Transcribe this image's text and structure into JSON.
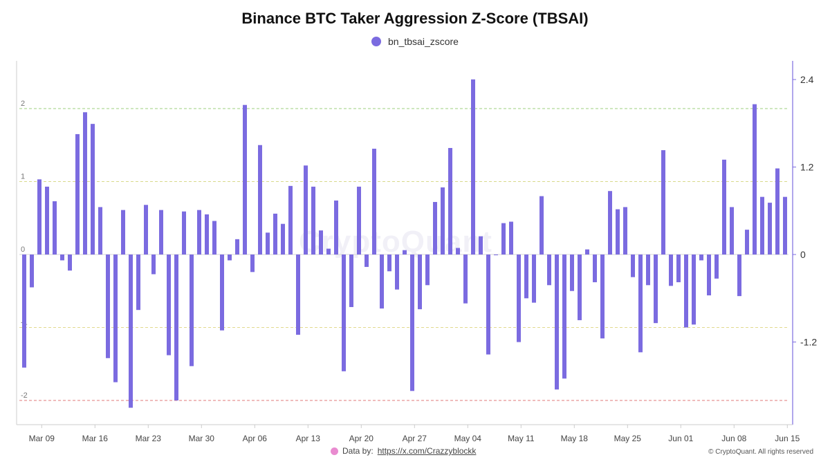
{
  "chart_data": {
    "type": "bar",
    "title": "Binance BTC Taker Aggression Z-Score (TBSAI)",
    "legend": {
      "position": "top-center",
      "entries": [
        "bn_tbsai_zscore"
      ]
    },
    "series": [
      {
        "name": "bn_tbsai_zscore",
        "color": "#7b6be0",
        "values": [
          -1.55,
          -0.45,
          1.03,
          0.93,
          0.73,
          -0.08,
          -0.22,
          1.65,
          1.95,
          1.79,
          0.65,
          -1.42,
          -1.75,
          0.61,
          -2.1,
          -0.76,
          0.68,
          -0.27,
          0.61,
          -1.38,
          -2.0,
          0.59,
          -1.53,
          0.61,
          0.55,
          0.46,
          -1.04,
          -0.08,
          0.21,
          2.05,
          -0.24,
          1.5,
          0.3,
          0.56,
          0.42,
          0.94,
          -1.1,
          1.22,
          0.93,
          0.33,
          0.08,
          0.74,
          -1.6,
          -0.72,
          0.93,
          -0.17,
          1.45,
          -0.74,
          -0.23,
          -0.48,
          0.06,
          -1.87,
          -0.75,
          -0.42,
          0.72,
          0.92,
          1.46,
          0.09,
          -0.67,
          2.4,
          0.25,
          -1.37,
          -0.01,
          0.43,
          0.45,
          -1.2,
          -0.6,
          -0.66,
          0.8,
          -0.42,
          -1.85,
          -1.7,
          -0.5,
          -0.9,
          0.07,
          -0.38,
          -1.15,
          0.87,
          0.62,
          0.65,
          -0.31,
          -1.34,
          -0.42,
          -0.94,
          1.43,
          -0.43,
          -0.38,
          -1.0,
          -0.96,
          -0.08,
          -0.56,
          -0.33,
          1.3,
          0.65,
          -0.57,
          0.34,
          2.06,
          0.79,
          0.71,
          1.18,
          0.79
        ]
      }
    ],
    "x_tick_labels": [
      "Mar 09",
      "Mar 16",
      "Mar 23",
      "Mar 30",
      "Apr 06",
      "Apr 13",
      "Apr 20",
      "Apr 27",
      "May 04",
      "May 11",
      "May 18",
      "May 25",
      "Jun 01",
      "Jun 08",
      "Jun 15"
    ],
    "left_axis": {
      "ticks": [
        "2",
        "1",
        "0",
        "-1",
        "-2"
      ],
      "values": [
        2,
        1,
        0,
        -1,
        -2
      ]
    },
    "right_axis": {
      "ticks": [
        "2.4",
        "1.2",
        "0",
        "-1.2"
      ],
      "values": [
        2.4,
        1.2,
        0,
        -1.2
      ]
    },
    "ylim": [
      -2.35,
      2.6
    ],
    "reference_lines": [
      {
        "value": 2,
        "color": "#9ccf7c"
      },
      {
        "value": 1,
        "color": "#d7d98a"
      },
      {
        "value": -1,
        "color": "#e2d98e"
      },
      {
        "value": -2,
        "color": "#e07a7a"
      }
    ],
    "grid": false
  },
  "watermark": "CryptoQuant",
  "footer": {
    "source_prefix": "Data by:",
    "source_link": "https://x.com/Crazzyblockk",
    "credit": "© CryptoQuant. All rights reserved"
  }
}
